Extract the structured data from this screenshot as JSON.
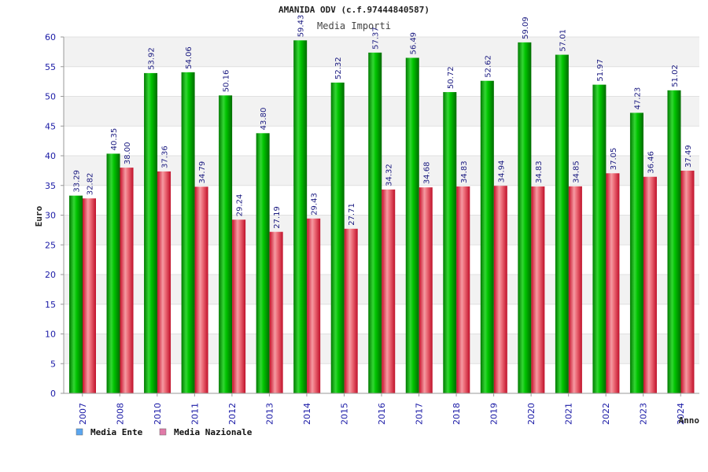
{
  "chart_data": {
    "type": "bar",
    "title": "AMANIDA ODV (c.f.97444840587)",
    "subtitle": "Media Importi",
    "xlabel": "Anno",
    "ylabel": "Euro",
    "ylim": [
      0,
      60
    ],
    "yticks": [
      0,
      5,
      10,
      15,
      20,
      25,
      30,
      35,
      40,
      45,
      50,
      55,
      60
    ],
    "categories": [
      "2007",
      "2008",
      "2010",
      "2011",
      "2012",
      "2013",
      "2014",
      "2015",
      "2016",
      "2017",
      "2018",
      "2019",
      "2020",
      "2021",
      "2022",
      "2023",
      "2024"
    ],
    "series": [
      {
        "name": "Media Ente",
        "color": "#00b000",
        "legend_color": "#5aa6f0",
        "values": [
          33.29,
          40.35,
          53.92,
          54.06,
          50.16,
          43.8,
          59.43,
          52.32,
          57.37,
          56.49,
          50.72,
          52.62,
          59.09,
          57.01,
          51.97,
          47.23,
          51.02
        ],
        "labels": [
          "33.29",
          "40.35",
          "53.92",
          "54.06",
          "50.16",
          "43.80",
          "59.43",
          "52.32",
          "57.37",
          "56.49",
          "50.72",
          "52.62",
          "59.09",
          "57.01",
          "51.97",
          "47.23",
          "51.02"
        ]
      },
      {
        "name": "Media Nazionale",
        "color": "#e23040",
        "legend_color": "#e07aa8",
        "values": [
          32.82,
          38.0,
          37.36,
          34.79,
          29.24,
          27.19,
          29.43,
          27.71,
          34.32,
          34.68,
          34.83,
          34.94,
          34.83,
          34.85,
          37.05,
          36.46,
          37.49
        ],
        "labels": [
          "32.82",
          "38.00",
          "37.36",
          "34.79",
          "29.24",
          "27.19",
          "29.43",
          "27.71",
          "34.32",
          "34.68",
          "34.83",
          "34.94",
          "34.83",
          "34.85",
          "37.05",
          "36.46",
          "37.49"
        ]
      }
    ],
    "grid": true,
    "legend_position": "bottom-left"
  }
}
